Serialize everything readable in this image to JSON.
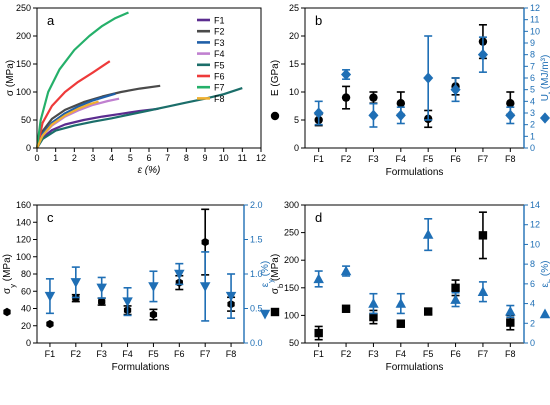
{
  "chart_data": [
    {
      "id": "a",
      "type": "line",
      "panel_label": "a",
      "xlabel": "ε (%)",
      "ylabel": "σ (MPa)",
      "xlim": [
        0,
        12
      ],
      "ylim": [
        0,
        250
      ],
      "xticks": [
        "0",
        "1",
        "2",
        "3",
        "4",
        "5",
        "6",
        "7",
        "8",
        "9",
        "10",
        "11",
        "12"
      ],
      "yticks": [
        "0",
        "50",
        "100",
        "150",
        "200",
        "250"
      ],
      "legend_position": "top-right",
      "series": [
        {
          "name": "F1",
          "color": "#5b2c8f",
          "x": [
            0,
            0.3,
            0.8,
            1.5,
            2.5,
            3.5,
            4.5,
            5.5,
            6.5
          ],
          "y": [
            0,
            18,
            32,
            42,
            50,
            56,
            61,
            66,
            70
          ]
        },
        {
          "name": "F2",
          "color": "#4a4a4a",
          "x": [
            0,
            0.3,
            0.8,
            1.5,
            2.5,
            3.5,
            4.5,
            5.5,
            6.6
          ],
          "y": [
            0,
            30,
            52,
            68,
            82,
            92,
            100,
            106,
            111
          ]
        },
        {
          "name": "F3",
          "color": "#1f5fa8",
          "x": [
            0,
            0.3,
            0.8,
            1.5,
            2.2,
            3.0,
            3.8,
            4.2
          ],
          "y": [
            0,
            25,
            45,
            62,
            74,
            85,
            93,
            97
          ]
        },
        {
          "name": "F4",
          "color": "#c080d0",
          "x": [
            0,
            0.3,
            0.8,
            1.5,
            2.2,
            3.0,
            3.8,
            4.4
          ],
          "y": [
            0,
            22,
            40,
            56,
            67,
            77,
            84,
            88
          ]
        },
        {
          "name": "F5",
          "color": "#1b6e6a",
          "x": [
            0,
            0.3,
            1,
            2,
            3,
            4,
            5,
            6,
            7,
            8,
            9,
            10,
            11
          ],
          "y": [
            0,
            16,
            31,
            40,
            47,
            53,
            60,
            67,
            74,
            81,
            88,
            96,
            107
          ]
        },
        {
          "name": "F6",
          "color": "#ee3a3a",
          "x": [
            0,
            0.3,
            0.8,
            1.5,
            2.2,
            3.0,
            3.5,
            3.9
          ],
          "y": [
            0,
            45,
            75,
            100,
            118,
            135,
            146,
            155
          ]
        },
        {
          "name": "F7",
          "color": "#25b06a",
          "x": [
            0,
            0.2,
            0.6,
            1.2,
            2.0,
            2.8,
            3.5,
            4.2,
            4.9
          ],
          "y": [
            0,
            50,
            100,
            140,
            175,
            200,
            218,
            232,
            242
          ]
        },
        {
          "name": "F8",
          "color": "#f0b030",
          "x": [
            0,
            0.3,
            0.8,
            1.5,
            2.2,
            2.8,
            3.3
          ],
          "y": [
            0,
            22,
            42,
            58,
            70,
            78,
            83
          ]
        }
      ]
    },
    {
      "id": "b",
      "type": "scatter",
      "panel_label": "b",
      "xlabel": "Formulations",
      "ylabel": "E (GPa)",
      "y2label": "U_t (MJ/m³)",
      "categories": [
        "F1",
        "F2",
        "F3",
        "F4",
        "F5",
        "F6",
        "F7",
        "F8"
      ],
      "ylim": [
        0,
        25
      ],
      "y2lim": [
        0,
        12
      ],
      "yticks": [
        "0",
        "5",
        "10",
        "15",
        "20",
        "25"
      ],
      "y2ticks": [
        "0",
        "1",
        "2",
        "3",
        "4",
        "5",
        "6",
        "7",
        "8",
        "9",
        "10",
        "11",
        "12"
      ],
      "series": [
        {
          "name": "E",
          "axis": "left",
          "marker": "circle",
          "color": "#000000",
          "values": [
            5,
            9,
            9,
            8,
            5.2,
            11,
            19,
            8
          ],
          "errors": [
            1,
            2,
            1,
            2,
            1.5,
            1.5,
            3,
            2
          ]
        },
        {
          "name": "U_t",
          "axis": "right",
          "marker": "diamond",
          "color": "#1f6fb5",
          "values": [
            3,
            6.3,
            2.8,
            2.8,
            6,
            5,
            8,
            2.8
          ],
          "errors": [
            1,
            0.4,
            1,
            0.7,
            3.6,
            1,
            1.5,
            0.7
          ]
        }
      ]
    },
    {
      "id": "c",
      "type": "scatter",
      "panel_label": "c",
      "xlabel": "Formulations",
      "ylabel": "σ_y (MPa)",
      "y2label": "ε_y (%)",
      "categories": [
        "F1",
        "F2",
        "F3",
        "F4",
        "F5",
        "F6",
        "F7",
        "F8"
      ],
      "ylim": [
        0,
        160
      ],
      "y2lim": [
        0,
        2.0
      ],
      "yticks": [
        "0",
        "20",
        "40",
        "60",
        "80",
        "100",
        "120",
        "140",
        "160"
      ],
      "y2ticks": [
        "0.0",
        "0.5",
        "1.0",
        "1.5",
        "2.0"
      ],
      "series": [
        {
          "name": "σ_y",
          "axis": "left",
          "marker": "hexagon",
          "color": "#000000",
          "values": [
            22,
            52,
            48,
            38,
            33,
            70,
            117,
            45
          ],
          "errors": [
            0,
            4,
            4,
            5,
            6,
            8,
            38,
            8
          ]
        },
        {
          "name": "ε_y",
          "axis": "right",
          "marker": "triangle-down",
          "color": "#1f6fb5",
          "values": [
            0.68,
            0.88,
            0.8,
            0.6,
            0.82,
            1.0,
            0.82,
            0.68
          ],
          "errors": [
            0.25,
            0.22,
            0.15,
            0.2,
            0.22,
            0.15,
            0.5,
            0.32
          ]
        }
      ]
    },
    {
      "id": "d",
      "type": "scatter",
      "panel_label": "d",
      "xlabel": "Formulations",
      "ylabel": "σ_b (MPa)",
      "y2label": "ε_b (%)",
      "categories": [
        "F1",
        "F2",
        "F3",
        "F4",
        "F5",
        "F6",
        "F7",
        "F8"
      ],
      "ylim": [
        50,
        300
      ],
      "y2lim": [
        0,
        14
      ],
      "yticks": [
        "50",
        "100",
        "150",
        "200",
        "250",
        "300"
      ],
      "y2ticks": [
        "0",
        "2",
        "4",
        "6",
        "8",
        "10",
        "12",
        "14"
      ],
      "series": [
        {
          "name": "σ_b",
          "axis": "left",
          "marker": "square",
          "color": "#000000",
          "values": [
            68,
            112,
            97,
            85,
            107,
            150,
            245,
            87
          ],
          "errors": [
            12,
            3,
            12,
            6,
            5,
            14,
            42,
            13
          ]
        },
        {
          "name": "ε_b",
          "axis": "right",
          "marker": "triangle-up",
          "color": "#1f6fb5",
          "values": [
            6.5,
            7.3,
            4,
            4,
            11,
            4.4,
            5.2,
            3.2
          ],
          "errors": [
            0.8,
            0.5,
            1,
            1,
            1.6,
            0.7,
            1,
            0.6
          ]
        }
      ]
    }
  ]
}
